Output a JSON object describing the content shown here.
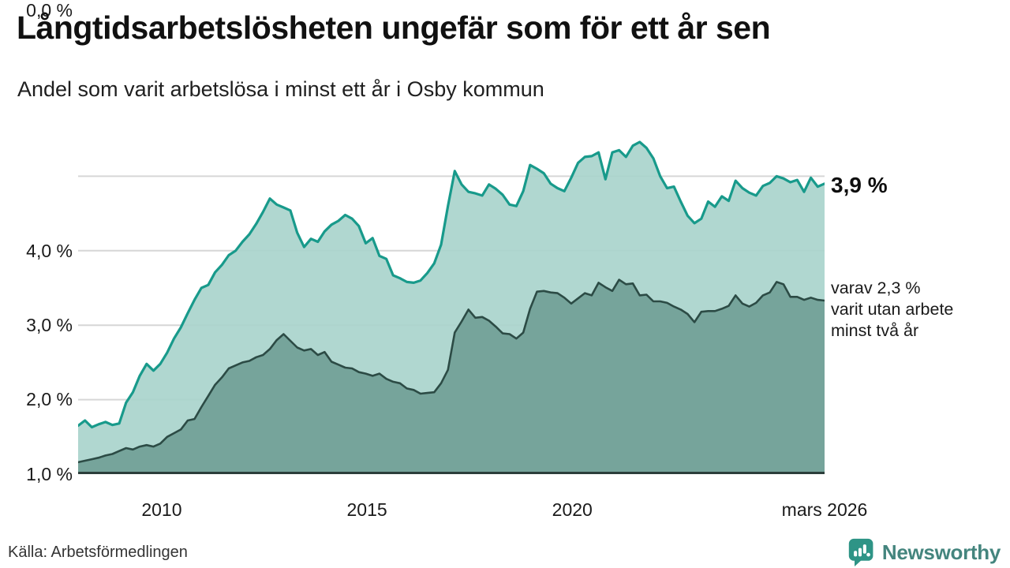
{
  "header": {
    "title": "Långtidsarbetslösheten ungefär som för ett år sen",
    "subtitle": "Andel som varit arbetslösa i minst ett år i Osby kommun"
  },
  "chart_data": {
    "type": "area",
    "title": "Långtidsarbetslösheten ungefär som för ett år sen",
    "subtitle": "Andel som varit arbetslösa i minst ett år i Osby kommun",
    "unit": "%",
    "x_start": "2008-01",
    "x_end": "2026-03",
    "step_months": 2,
    "ylim": [
      0,
      4.6
    ],
    "grid": true,
    "y_ticks": [
      "4,0 %",
      "3,0 %",
      "2,0 %",
      "1,0 %",
      "0,0 %"
    ],
    "y_tick_values": [
      4.0,
      3.0,
      2.0,
      1.0,
      0.0
    ],
    "x_ticks": [
      {
        "label": "2010",
        "pos": 0.112
      },
      {
        "label": "2015",
        "pos": 0.387
      },
      {
        "label": "2020",
        "pos": 0.662
      },
      {
        "label": "mars 2026",
        "pos": 1.0
      }
    ],
    "series": [
      {
        "name": "Andel som varit arbetslösa i minst ett år",
        "end_value": 3.9,
        "line_color": "#189a8b",
        "fill_color": "#a9d4cc",
        "values": [
          0.65,
          0.72,
          0.63,
          0.67,
          0.7,
          0.66,
          0.68,
          0.96,
          1.1,
          1.32,
          1.48,
          1.39,
          1.48,
          1.63,
          1.82,
          1.97,
          2.16,
          2.34,
          2.5,
          2.54,
          2.71,
          2.81,
          2.94,
          3.0,
          3.12,
          3.22,
          3.36,
          3.52,
          3.7,
          3.62,
          3.58,
          3.54,
          3.24,
          3.05,
          3.16,
          3.12,
          3.26,
          3.35,
          3.4,
          3.48,
          3.43,
          3.33,
          3.1,
          3.17,
          2.93,
          2.89,
          2.67,
          2.63,
          2.58,
          2.57,
          2.6,
          2.7,
          2.83,
          3.08,
          3.6,
          4.07,
          3.89,
          3.79,
          3.77,
          3.74,
          3.89,
          3.83,
          3.75,
          3.62,
          3.6,
          3.8,
          4.15,
          4.1,
          4.04,
          3.9,
          3.84,
          3.8,
          3.98,
          4.18,
          4.26,
          4.27,
          4.32,
          3.96,
          4.32,
          4.35,
          4.26,
          4.41,
          4.46,
          4.38,
          4.24,
          4.0,
          3.84,
          3.86,
          3.66,
          3.47,
          3.37,
          3.43,
          3.66,
          3.59,
          3.73,
          3.67,
          3.94,
          3.84,
          3.78,
          3.74,
          3.87,
          3.91,
          4.0,
          3.97,
          3.92,
          3.95,
          3.79,
          3.98,
          3.86,
          3.9
        ]
      },
      {
        "name": "varav utan arbete minst två år",
        "end_value": 2.3,
        "line_color": "#2c4b45",
        "fill_color": "#74a199",
        "values": [
          0.16,
          0.18,
          0.2,
          0.22,
          0.25,
          0.27,
          0.31,
          0.35,
          0.33,
          0.37,
          0.39,
          0.37,
          0.41,
          0.5,
          0.55,
          0.6,
          0.72,
          0.74,
          0.9,
          1.05,
          1.2,
          1.3,
          1.42,
          1.46,
          1.5,
          1.52,
          1.57,
          1.6,
          1.68,
          1.8,
          1.88,
          1.79,
          1.7,
          1.66,
          1.68,
          1.6,
          1.64,
          1.51,
          1.47,
          1.43,
          1.42,
          1.37,
          1.35,
          1.32,
          1.35,
          1.28,
          1.24,
          1.22,
          1.15,
          1.13,
          1.08,
          1.09,
          1.1,
          1.22,
          1.4,
          1.9,
          2.05,
          2.21,
          2.1,
          2.11,
          2.06,
          1.98,
          1.89,
          1.88,
          1.82,
          1.9,
          2.22,
          2.45,
          2.46,
          2.44,
          2.43,
          2.37,
          2.29,
          2.36,
          2.43,
          2.4,
          2.57,
          2.51,
          2.46,
          2.61,
          2.55,
          2.56,
          2.4,
          2.41,
          2.32,
          2.32,
          2.3,
          2.25,
          2.21,
          2.15,
          2.04,
          2.18,
          2.19,
          2.19,
          2.22,
          2.26,
          2.4,
          2.29,
          2.25,
          2.3,
          2.4,
          2.44,
          2.58,
          2.55,
          2.38,
          2.38,
          2.34,
          2.37,
          2.34,
          2.33
        ]
      }
    ]
  },
  "annotations": {
    "end_value_label": "3,9 %",
    "sub_lines": [
      "varav 2,3 %",
      "varit utan arbete",
      "minst två år"
    ]
  },
  "footer": {
    "source": "Källa: Arbetsförmedlingen",
    "brand": "Newsworthy"
  },
  "colors": {
    "accent_teal": "#189a8b",
    "light_fill": "#a9d4cc",
    "dark_fill": "#74a199",
    "dark_line": "#2c4b45",
    "gridline": "#d6d6d6",
    "baseline": "#2c3e3b",
    "brand_teal": "#2e9486",
    "brand_text": "#44857e"
  }
}
